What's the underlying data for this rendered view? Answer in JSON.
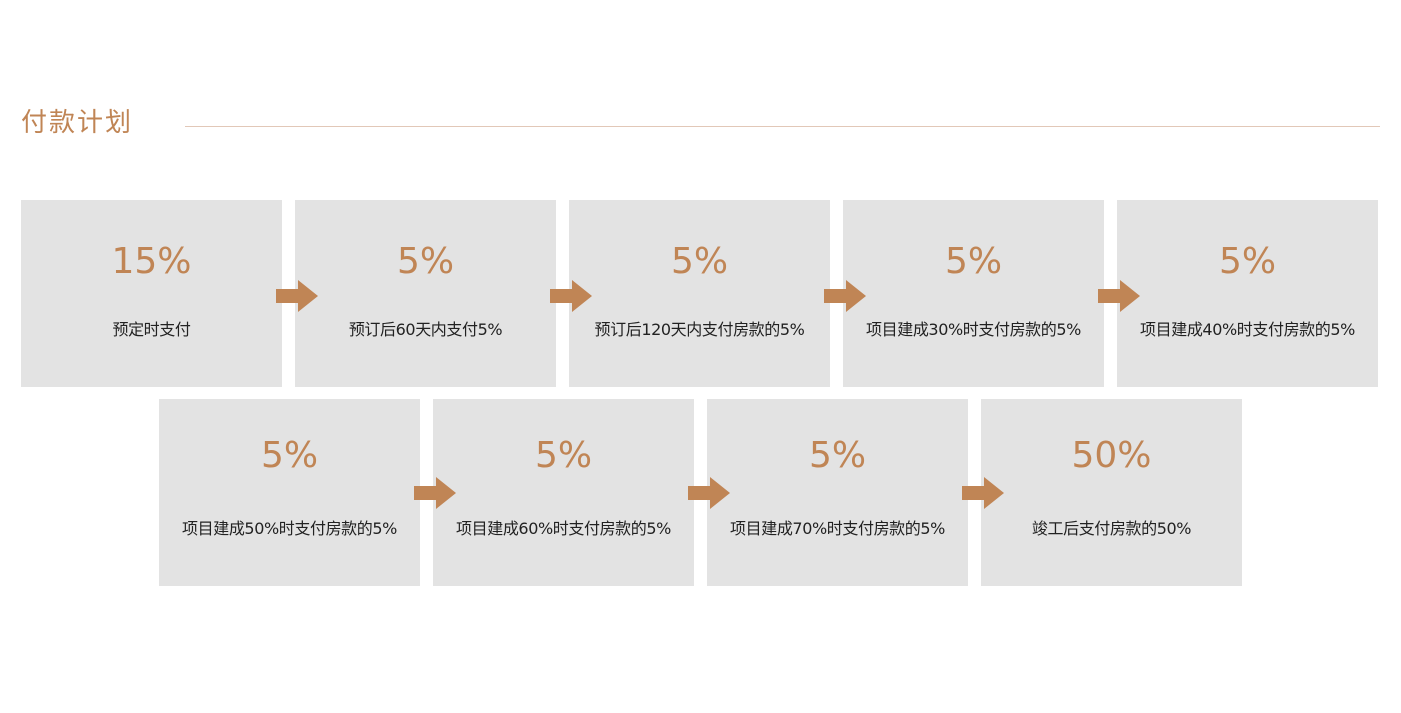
{
  "header": {
    "title": "付款计划"
  },
  "colors": {
    "accent": "#c08555",
    "card_bg": "#e3e3e3",
    "rule": "#e2c8b8",
    "text": "#222222"
  },
  "steps": [
    {
      "percent": "15%",
      "label": "预定时支付"
    },
    {
      "percent": "5%",
      "label": "预订后60天内支付5%"
    },
    {
      "percent": "5%",
      "label": "预订后120天内支付房款的5%"
    },
    {
      "percent": "5%",
      "label": "项目建成30%时支付房款的5%"
    },
    {
      "percent": "5%",
      "label": "项目建成40%时支付房款的5%"
    },
    {
      "percent": "5%",
      "label": "项目建成50%时支付房款的5%"
    },
    {
      "percent": "5%",
      "label": "项目建成60%时支付房款的5%"
    },
    {
      "percent": "5%",
      "label": "项目建成70%时支付房款的5%"
    },
    {
      "percent": "50%",
      "label": "竣工后支付房款的50%"
    }
  ],
  "arrow_icon": "arrow-right-icon"
}
